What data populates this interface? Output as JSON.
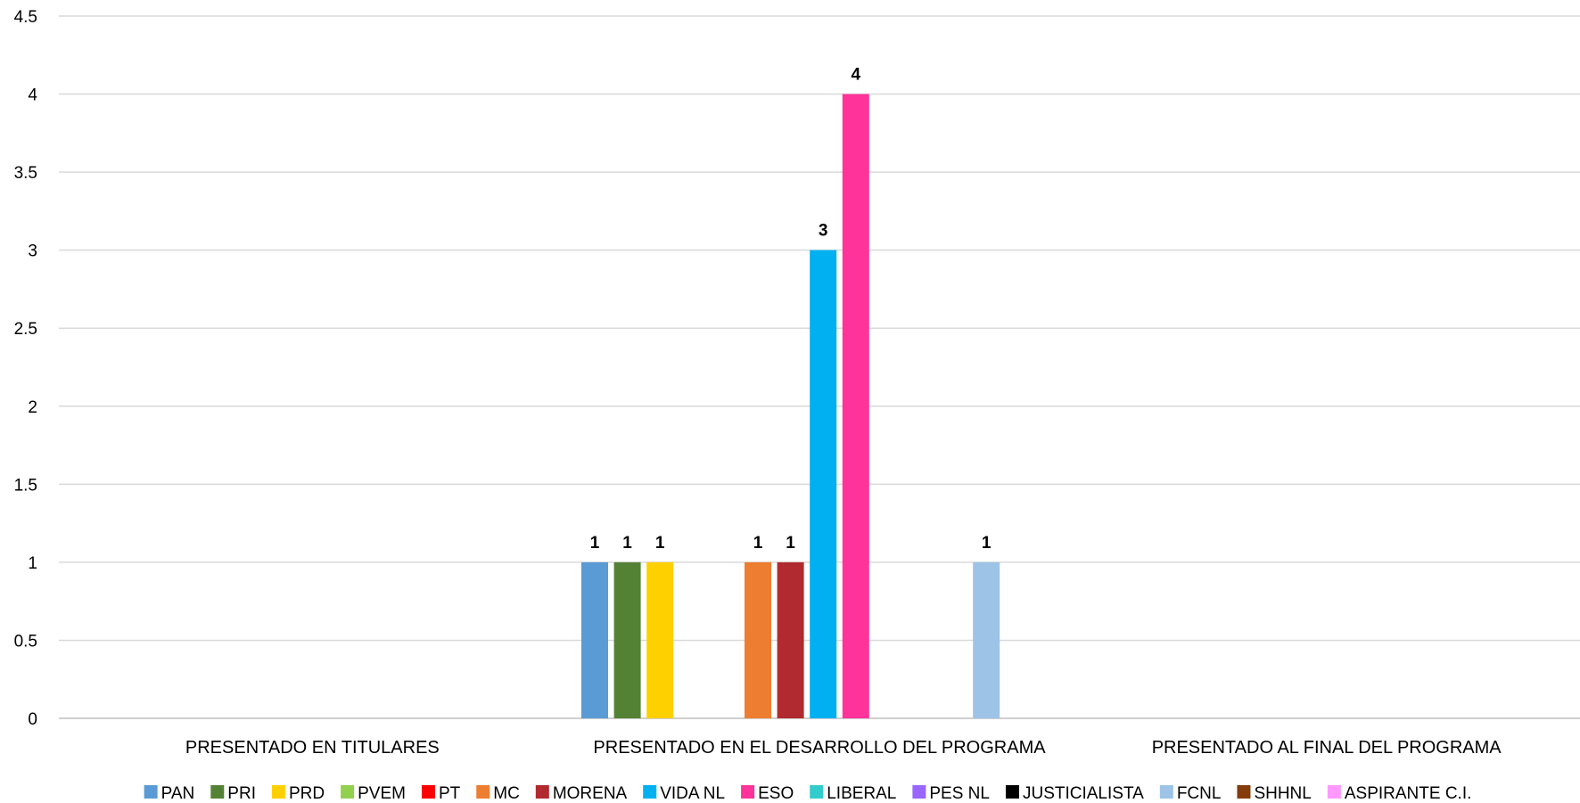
{
  "chart_data": {
    "type": "bar",
    "categories": [
      "PRESENTADO EN TITULARES",
      "PRESENTADO EN EL DESARROLLO DEL PROGRAMA",
      "PRESENTADO AL FINAL DEL PROGRAMA"
    ],
    "series": [
      {
        "name": "PAN",
        "color": "#5B9BD5",
        "values": [
          0,
          1,
          0
        ]
      },
      {
        "name": "PRI",
        "color": "#548235",
        "values": [
          0,
          1,
          0
        ]
      },
      {
        "name": "PRD",
        "color": "#FFD000",
        "values": [
          0,
          1,
          0
        ]
      },
      {
        "name": "PVEM",
        "color": "#92D050",
        "values": [
          0,
          0,
          0
        ]
      },
      {
        "name": "PT",
        "color": "#FF0000",
        "values": [
          0,
          0,
          0
        ]
      },
      {
        "name": "MC",
        "color": "#ED7D31",
        "values": [
          0,
          1,
          0
        ]
      },
      {
        "name": "MORENA",
        "color": "#B02A30",
        "values": [
          0,
          1,
          0
        ]
      },
      {
        "name": "VIDA NL",
        "color": "#00B0F0",
        "values": [
          0,
          3,
          0
        ]
      },
      {
        "name": "ESO",
        "color": "#FF3399",
        "values": [
          0,
          4,
          0
        ]
      },
      {
        "name": "LIBERAL",
        "color": "#33CCCC",
        "values": [
          0,
          0,
          0
        ]
      },
      {
        "name": "PES NL",
        "color": "#9966FF",
        "values": [
          0,
          0,
          0
        ]
      },
      {
        "name": "JUSTICIALISTA",
        "color": "#000000",
        "values": [
          0,
          0,
          0
        ]
      },
      {
        "name": "FCNL",
        "color": "#9DC3E6",
        "values": [
          0,
          1,
          0
        ]
      },
      {
        "name": "SHHNL",
        "color": "#843C0C",
        "values": [
          0,
          0,
          0
        ]
      },
      {
        "name": "ASPIRANTE C.I.",
        "color": "#FF99FF",
        "values": [
          0,
          0,
          0
        ]
      }
    ],
    "yticks": [
      "0",
      "0.5",
      "1",
      "1.5",
      "2",
      "2.5",
      "3",
      "3.5",
      "4",
      "4.5"
    ],
    "ylim": [
      0,
      4.5
    ],
    "grid": true,
    "legend": "bottom",
    "show_data_labels_for_nonzero": true,
    "title": "",
    "xlabel": "",
    "ylabel": ""
  }
}
